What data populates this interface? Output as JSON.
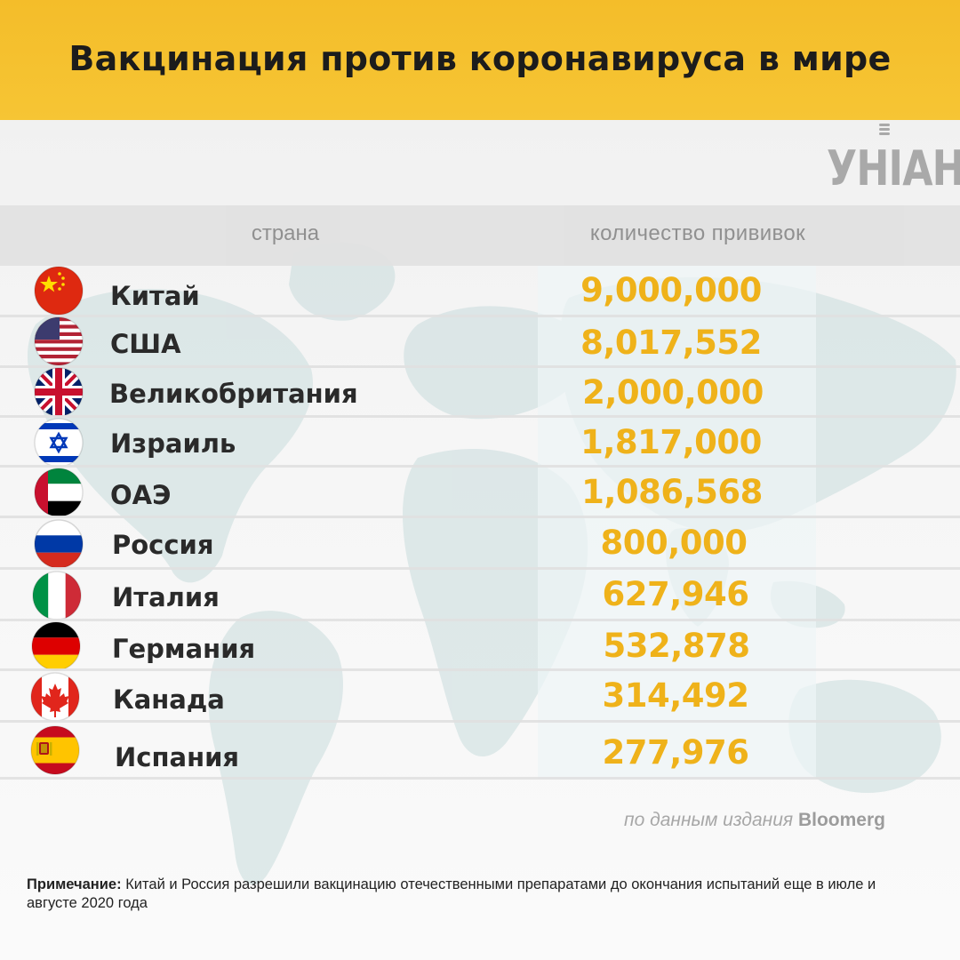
{
  "title": "Вакцинация против коронавируса в мире",
  "logo": {
    "text": "УНІАН",
    "icon": "microphone-icon"
  },
  "table": {
    "headers": {
      "country": "страна",
      "count": "количество прививок"
    },
    "rows": [
      {
        "country": "Китай",
        "value": "9,000,000",
        "flag": "china-flag-icon"
      },
      {
        "country": "США",
        "value": "8,017,552",
        "flag": "usa-flag-icon"
      },
      {
        "country": "Великобритания",
        "value": "2,000,000",
        "flag": "uk-flag-icon"
      },
      {
        "country": "Израиль",
        "value": "1,817,000",
        "flag": "israel-flag-icon"
      },
      {
        "country": "ОАЭ",
        "value": "1,086,568",
        "flag": "uae-flag-icon"
      },
      {
        "country": "Россия",
        "value": "800,000",
        "flag": "russia-flag-icon"
      },
      {
        "country": "Италия",
        "value": "627,946",
        "flag": "italy-flag-icon"
      },
      {
        "country": "Германия",
        "value": "532,878",
        "flag": "germany-flag-icon"
      },
      {
        "country": "Канада",
        "value": "314,492",
        "flag": "canada-flag-icon"
      },
      {
        "country": "Испания",
        "value": "277,976",
        "flag": "spain-flag-icon"
      }
    ]
  },
  "source": {
    "prefix": "по данным издания",
    "name": "Bloomerg"
  },
  "note": {
    "label": "Примечание:",
    "text": "Китай и Россия разрешили вакцинацию отечественными препаратами до окончания испытаний еще в июле и августе 2020 года"
  },
  "colors": {
    "header_bg": "#f5c12f",
    "value": "#efb21a",
    "text": "#2a2a2a",
    "muted": "#8b8b8b"
  }
}
